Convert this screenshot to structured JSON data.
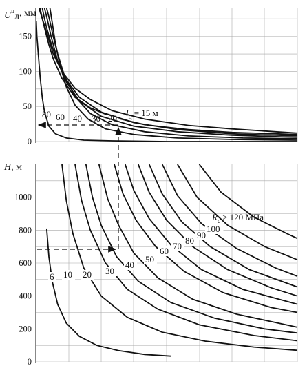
{
  "chart_data": [
    {
      "type": "line",
      "ylabel_main": "U",
      "ylabel_sup": "ц",
      "ylabel_sub": "л",
      "ylabel_unit": ", мм",
      "ylim": [
        0,
        190
      ],
      "yticks": [
        "0",
        "50",
        "100",
        "150"
      ],
      "grid": true,
      "xlim": [
        0,
        120
      ],
      "param_label_main": "l",
      "param_label_sub": "ц",
      "param_label_value": " = 15 м",
      "series": [
        {
          "name": "15",
          "label": "",
          "x": [
            1.5,
            2,
            3,
            4,
            6,
            8,
            12,
            18,
            25,
            35,
            50,
            70,
            90,
            110,
            120
          ],
          "y": [
            190,
            185,
            175,
            165,
            145,
            125,
            100,
            76,
            60,
            44,
            32,
            23,
            18,
            14,
            12
          ]
        },
        {
          "name": "20",
          "label": "20",
          "x": [
            2,
            3,
            4,
            6,
            8,
            12,
            18,
            25,
            35,
            50,
            70,
            90,
            110,
            120
          ],
          "y": [
            190,
            175,
            162,
            138,
            118,
            90,
            63,
            48,
            35,
            24,
            17,
            13,
            11,
            10
          ]
        },
        {
          "name": "30",
          "label": "30",
          "x": [
            3,
            4,
            5,
            7,
            10,
            14,
            20,
            30,
            45,
            65,
            90,
            120
          ],
          "y": [
            190,
            175,
            162,
            140,
            113,
            88,
            63,
            42,
            27,
            17,
            11,
            8
          ]
        },
        {
          "name": "40",
          "label": "40",
          "x": [
            4,
            5,
            7,
            10,
            14,
            20,
            30,
            45,
            65,
            90,
            120
          ],
          "y": [
            190,
            178,
            150,
            115,
            85,
            58,
            36,
            22,
            14,
            9,
            6
          ]
        },
        {
          "name": "60",
          "label": "60",
          "x": [
            5,
            6,
            8,
            10,
            13,
            18,
            25,
            35,
            50,
            70,
            95,
            120
          ],
          "y": [
            190,
            178,
            150,
            125,
            95,
            64,
            40,
            24,
            14,
            8,
            5,
            4
          ]
        },
        {
          "name": "80",
          "label": "80",
          "x": [
            6.5,
            7.5,
            9,
            11,
            14,
            18,
            24,
            32,
            45,
            65,
            90,
            120
          ],
          "y": [
            190,
            170,
            140,
            110,
            78,
            52,
            32,
            18,
            10,
            5,
            3,
            2
          ]
        },
        {
          "name": "edge",
          "label": "",
          "x": [
            0.2,
            0.5,
            1,
            1.5,
            2,
            3,
            4,
            6,
            9,
            14,
            22,
            35,
            60,
            120
          ],
          "y": [
            172,
            150,
            130,
            110,
            92,
            62,
            42,
            22,
            11,
            5,
            2,
            1,
            0,
            0
          ]
        }
      ]
    },
    {
      "type": "line",
      "ylabel_main": "H",
      "ylabel_unit": ", м",
      "ylim": [
        0,
        1200
      ],
      "yticks": [
        "0",
        "200",
        "400",
        "600",
        "800",
        "1000"
      ],
      "grid": true,
      "xlim": [
        0,
        120
      ],
      "param_label_main": "R",
      "param_label_sub": "с",
      "param_label_value": " ≥ 120 МПа",
      "series": [
        {
          "name": "6",
          "label": "6",
          "x": [
            5,
            6,
            7.5,
            10,
            14,
            20,
            28,
            38,
            50,
            62
          ],
          "y": [
            810,
            640,
            490,
            350,
            235,
            155,
            100,
            68,
            45,
            35
          ]
        },
        {
          "name": "10",
          "label": "10",
          "x": [
            12,
            14,
            17,
            22,
            30,
            42,
            58,
            78,
            100,
            120
          ],
          "y": [
            1200,
            980,
            780,
            570,
            400,
            270,
            180,
            125,
            90,
            70
          ]
        },
        {
          "name": "20",
          "label": "20",
          "x": [
            18,
            21,
            25,
            32,
            42,
            56,
            75,
            100,
            120
          ],
          "y": [
            1200,
            980,
            800,
            600,
            440,
            320,
            225,
            160,
            128
          ]
        },
        {
          "name": "30",
          "label": "30",
          "x": [
            23,
            26,
            30,
            37,
            47,
            62,
            82,
            105,
            120
          ],
          "y": [
            1200,
            1000,
            830,
            640,
            490,
            360,
            265,
            200,
            175
          ]
        },
        {
          "name": "40",
          "label": "40",
          "x": [
            29,
            33,
            38,
            45,
            56,
            72,
            92,
            120
          ],
          "y": [
            1200,
            990,
            830,
            660,
            510,
            380,
            290,
            210
          ]
        },
        {
          "name": "50",
          "label": "50",
          "x": [
            36,
            40,
            46,
            55,
            68,
            86,
            108,
            120
          ],
          "y": [
            1200,
            1020,
            860,
            700,
            550,
            420,
            330,
            300
          ]
        },
        {
          "name": "60",
          "label": "60",
          "x": [
            41,
            45,
            52,
            62,
            76,
            95,
            120
          ],
          "y": [
            1200,
            1040,
            870,
            710,
            560,
            440,
            350
          ]
        },
        {
          "name": "70",
          "label": "70",
          "x": [
            47,
            52,
            60,
            72,
            88,
            108,
            120
          ],
          "y": [
            1200,
            1030,
            860,
            700,
            560,
            450,
            400
          ]
        },
        {
          "name": "80",
          "label": "80",
          "x": [
            52,
            58,
            67,
            80,
            98,
            120
          ],
          "y": [
            1200,
            1020,
            850,
            700,
            560,
            455
          ]
        },
        {
          "name": "90",
          "label": "90",
          "x": [
            58,
            65,
            76,
            92,
            110,
            120
          ],
          "y": [
            1200,
            1010,
            840,
            690,
            570,
            520
          ]
        },
        {
          "name": "100",
          "label": "100",
          "x": [
            65,
            74,
            88,
            105,
            120
          ],
          "y": [
            1200,
            1000,
            830,
            700,
            620
          ]
        },
        {
          "name": "120",
          "label": "",
          "x": [
            75,
            85,
            100,
            115,
            120
          ],
          "y": [
            1200,
            1030,
            880,
            780,
            750
          ]
        }
      ]
    }
  ]
}
